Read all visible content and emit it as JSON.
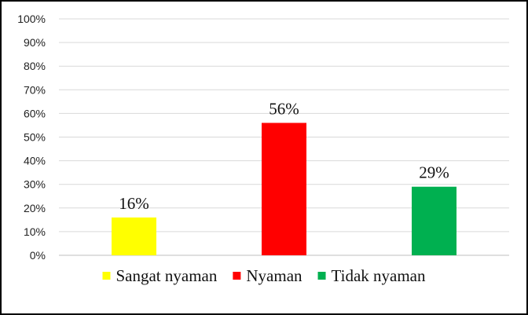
{
  "chart_data": {
    "type": "bar",
    "categories": [
      "Sangat nyaman",
      "Nyaman",
      "Tidak nyaman"
    ],
    "values": [
      16,
      56,
      29
    ],
    "data_labels": [
      "16%",
      "56%",
      "29%"
    ],
    "colors": [
      "#ffff00",
      "#ff0000",
      "#00b050"
    ],
    "yticks": [
      "0%",
      "10%",
      "20%",
      "30%",
      "40%",
      "50%",
      "60%",
      "70%",
      "80%",
      "90%",
      "100%"
    ],
    "ylim": [
      0,
      100
    ],
    "grid": true,
    "legend": {
      "placement": "bottom",
      "entries": [
        "Sangat nyaman",
        "Nyaman",
        "Tidak nyaman"
      ]
    },
    "title": "",
    "xlabel": "",
    "ylabel": ""
  }
}
